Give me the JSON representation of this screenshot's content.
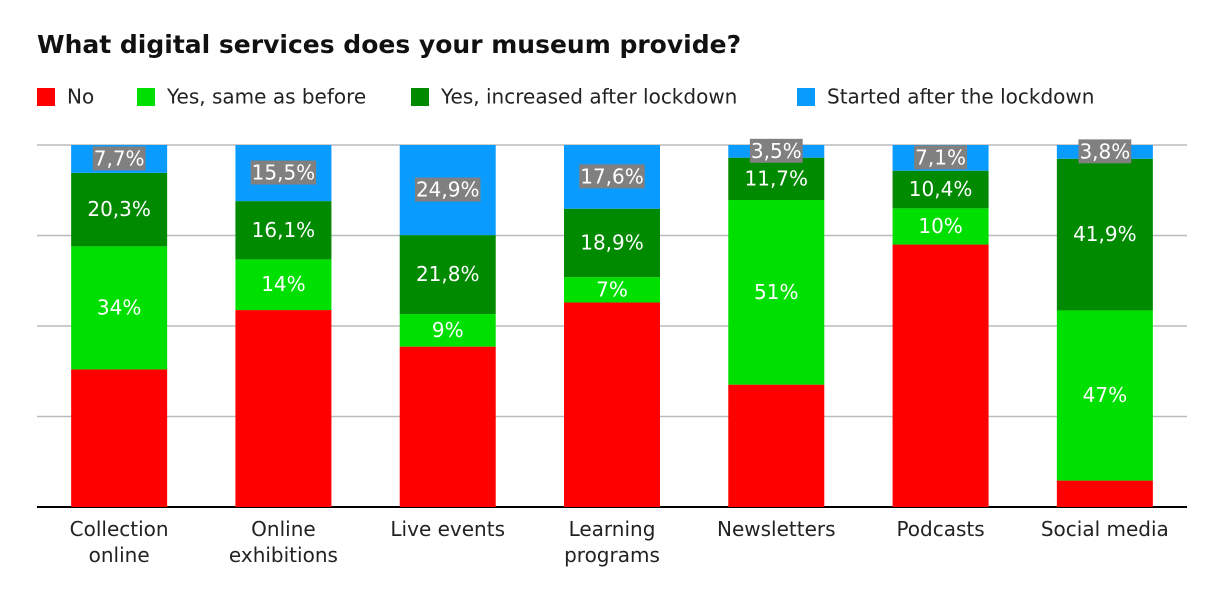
{
  "chart_data": {
    "type": "stacked_bar",
    "title": "What digital services does your museum provide?",
    "categories": [
      "Collection online",
      "Online exhibitions",
      "Live events",
      "Learning programs",
      "Newsletters",
      "Podcasts",
      "Social media"
    ],
    "series": [
      {
        "name": "No",
        "color": "#ff0000",
        "values": [
          38,
          54.4,
          44.3,
          56.5,
          33.8,
          72.5,
          7.3
        ]
      },
      {
        "name": "Yes, same as before",
        "color": "#00e000",
        "values": [
          34,
          14,
          9,
          7,
          51,
          10,
          47
        ],
        "value_labels": [
          "34%",
          "14%",
          "9%",
          "7%",
          "51%",
          "10%",
          "47%"
        ]
      },
      {
        "name": "Yes, increased after lockdown",
        "color": "#008a00",
        "values": [
          20.3,
          16.1,
          21.8,
          18.9,
          11.7,
          10.4,
          41.9
        ],
        "value_labels": [
          "20,3%",
          "16,1%",
          "21,8%",
          "18,9%",
          "11,7%",
          "10,4%",
          "41,9%"
        ]
      },
      {
        "name": "Started after the lockdown",
        "color": "#0a9bff",
        "values": [
          7.7,
          15.5,
          24.9,
          17.6,
          3.5,
          7.1,
          3.8
        ],
        "value_labels": [
          "7,7%",
          "15,5%",
          "24,9%",
          "17,6%",
          "3,5%",
          "7,1%",
          "3,8%"
        ]
      }
    ],
    "ylim": [
      0,
      100
    ],
    "yticks": [
      0,
      25,
      50,
      75,
      100
    ],
    "grid": true
  }
}
